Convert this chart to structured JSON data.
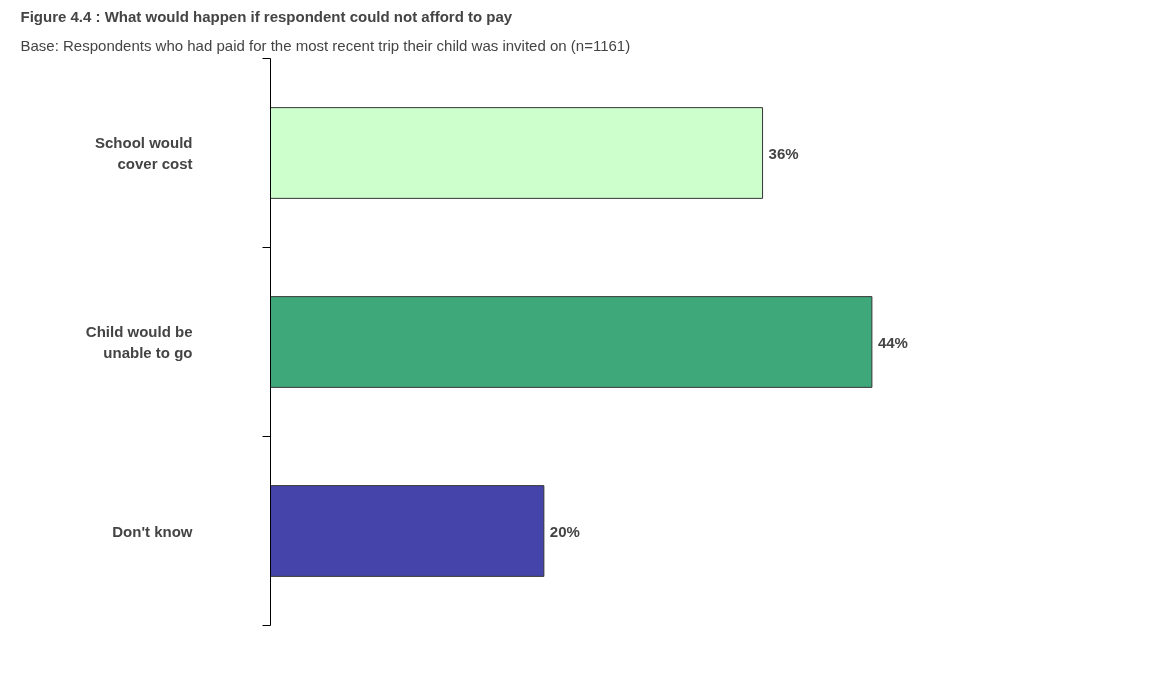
{
  "chart_data": {
    "type": "bar",
    "orientation": "horizontal",
    "tick_labels": "y",
    "title": "Figure 4.4 : What would happen if respondent could not afford to pay",
    "subtitle": "Base: Respondents who had paid for the most recent trip their child was invited on (n=1161)",
    "categories": [
      "School would cover cost",
      "Child would be unable to go",
      "Don't know"
    ],
    "values": [
      36,
      44,
      20
    ],
    "colors": [
      "#ccffcc",
      "#3ea87a",
      "#4444aa"
    ],
    "value_labels": [
      "36%",
      "44%",
      "20%"
    ],
    "grid": false
  }
}
